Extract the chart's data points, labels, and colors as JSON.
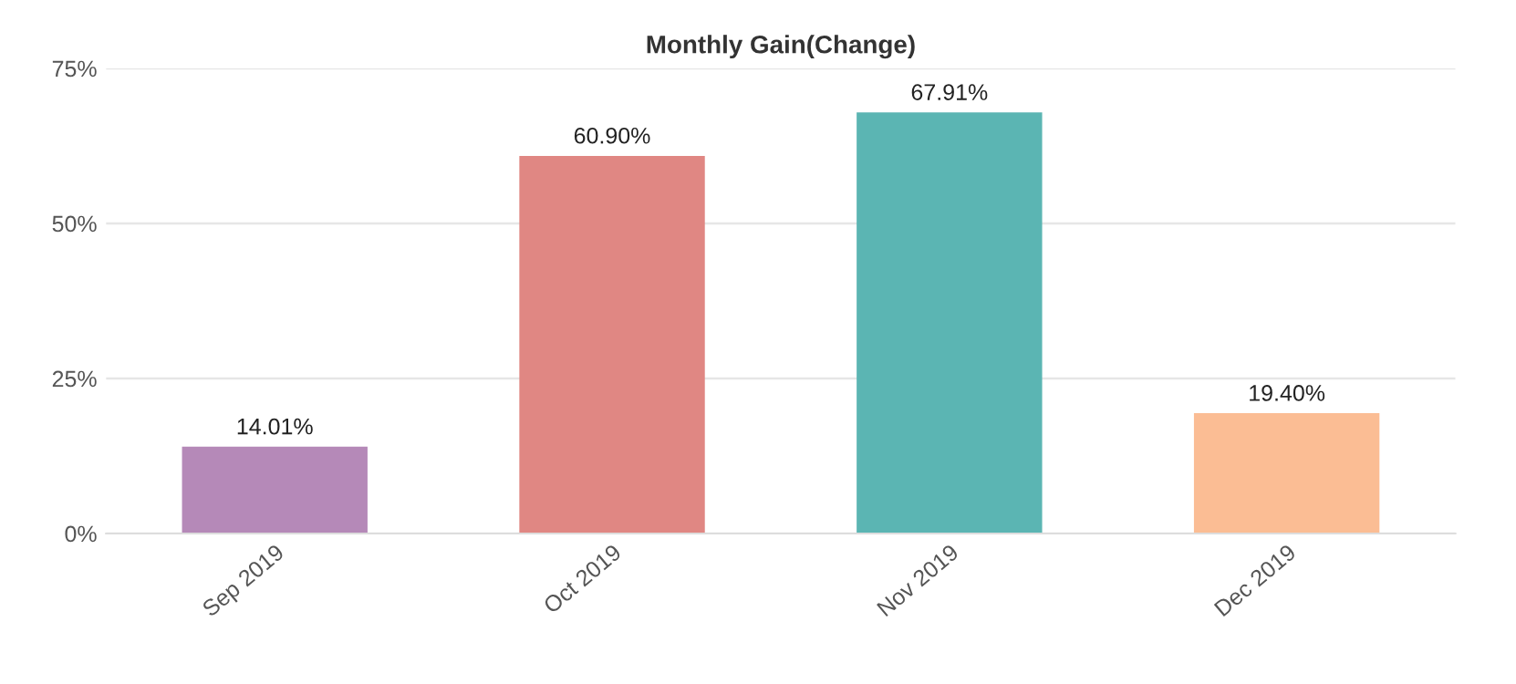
{
  "chart_data": {
    "type": "bar",
    "title": "Monthly Gain(Change)",
    "categories": [
      "Sep 2019",
      "Oct 2019",
      "Nov 2019",
      "Dec 2019"
    ],
    "values": [
      14.01,
      60.9,
      67.91,
      19.4
    ],
    "colors": [
      "#b589b8",
      "#e08783",
      "#5bb5b3",
      "#fbbd94"
    ],
    "value_labels": [
      "14.01%",
      "60.90%",
      "67.91%",
      "19.40%"
    ],
    "ylim": [
      0,
      75
    ],
    "yticks": [
      {
        "value": 0,
        "label": "0%"
      },
      {
        "value": 25,
        "label": "25%"
      },
      {
        "value": 50,
        "label": "50%"
      },
      {
        "value": 75,
        "label": "75%"
      }
    ],
    "grid": "y",
    "legend": false
  }
}
